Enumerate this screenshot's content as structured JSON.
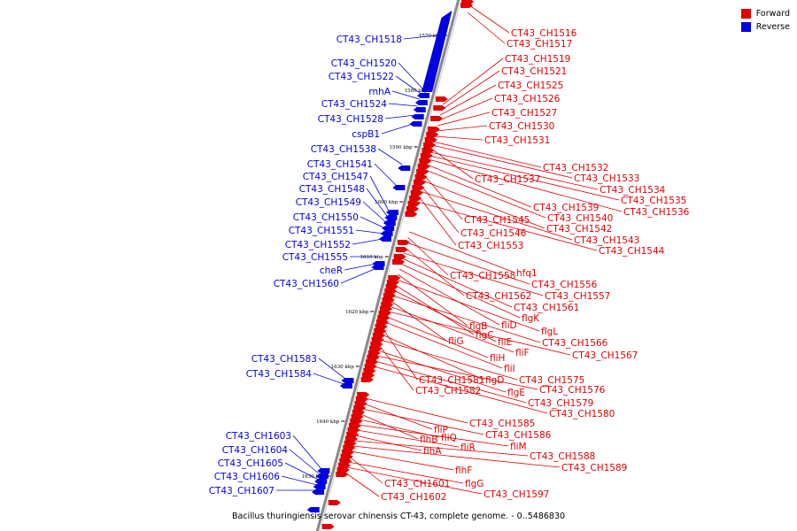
{
  "legend": [
    {
      "label": "Forward",
      "color": "#e00000"
    },
    {
      "label": "Reverse",
      "color": "#0000e0"
    }
  ],
  "caption": "Bacillus thuringiensis serovar chinensis CT-43, complete genome. - 0..5486830",
  "colors": {
    "forward": "#e00000",
    "reverse": "#0000e0",
    "axis": "#888888"
  },
  "ticks": [
    "1570 kbp",
    "1580 kbp",
    "1590 kbp",
    "1600 kbp",
    "1610 kbp",
    "1620 kbp",
    "1630 kbp",
    "1640 kbp",
    "1650 kbp"
  ],
  "forward_labels": [
    "CT43_CH1516",
    "CT43_CH1517",
    "CT43_CH1519",
    "CT43_CH1521",
    "CT43_CH1525",
    "CT43_CH1526",
    "CT43_CH1527",
    "CT43_CH1530",
    "CT43_CH1531",
    "CT43_CH1532",
    "CT43_CH1533",
    "CT43_CH1537",
    "CT43_CH1534",
    "CT43_CH1535",
    "CT43_CH1536",
    "CT43_CH1539",
    "CT43_CH1540",
    "CT43_CH1545",
    "CT43_CH1542",
    "CT43_CH1546",
    "CT43_CH1543",
    "CT43_CH1553",
    "CT43_CH1544",
    "hfq1",
    "CT43_CH1558",
    "CT43_CH1556",
    "CT43_CH1562",
    "CT43_CH1557",
    "CT43_CH1561",
    "flgK",
    "fliD",
    "flgB",
    "flgL",
    "flgC",
    "fliE",
    "CT43_CH1566",
    "fliG",
    "fliF",
    "CT43_CH1567",
    "fliH",
    "fliI",
    "CT43_CH1581",
    "flgD",
    "CT43_CH1575",
    "CT43_CH1582",
    "flgE",
    "CT43_CH1576",
    "CT43_CH1579",
    "CT43_CH1580",
    "CT43_CH1585",
    "fliP",
    "CT43_CH1586",
    "flhB",
    "fliQ",
    "fliM",
    "fliR",
    "flhA",
    "CT43_CH1588",
    "CT43_CH1589",
    "flhF",
    "CT43_CH1601",
    "flgG",
    "CT43_CH1597",
    "CT43_CH1602"
  ],
  "reverse_labels": [
    "CT43_CH1518",
    "CT43_CH1520",
    "CT43_CH1522",
    "rnhA",
    "CT43_CH1524",
    "CT43_CH1528",
    "cspB1",
    "CT43_CH1538",
    "CT43_CH1541",
    "CT43_CH1547",
    "CT43_CH1548",
    "CT43_CH1549",
    "CT43_CH1550",
    "CT43_CH1551",
    "CT43_CH1552",
    "CT43_CH1555",
    "cheR",
    "CT43_CH1560",
    "CT43_CH1583",
    "CT43_CH1584",
    "CT43_CH1603",
    "CT43_CH1604",
    "CT43_CH1605",
    "CT43_CH1606",
    "CT43_CH1607"
  ]
}
